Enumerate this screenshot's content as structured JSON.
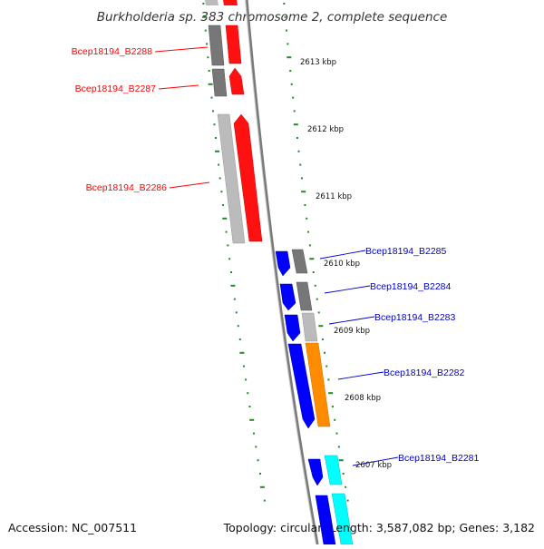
{
  "title": "Burkholderia sp. 383 chromosome 2, complete sequence",
  "footer": {
    "accession": "Accession: NC_007511",
    "summary": "Topology: circular; Length: 3,587,082 bp; Genes: 3,182"
  },
  "colors": {
    "red": "#ff0000",
    "blue": "#0000ff",
    "cyan": "#00ffff",
    "orange": "#ff8c00",
    "dark_gray": "#666666",
    "light_gray": "#bbbbbb",
    "tick_green": "#228b22",
    "backbone": "#808080"
  },
  "kbp_labels": [
    "2613 kbp",
    "2612 kbp",
    "2611 kbp",
    "2610 kbp",
    "2609 kbp",
    "2608 kbp",
    "2607 kbp"
  ],
  "genes": [
    {
      "id": "Bcep18194_B2288",
      "color": "red",
      "side": "left"
    },
    {
      "id": "Bcep18194_B2287",
      "color": "red",
      "side": "left"
    },
    {
      "id": "Bcep18194_B2286",
      "color": "red",
      "side": "left"
    },
    {
      "id": "Bcep18194_B2285",
      "color": "blue",
      "side": "right"
    },
    {
      "id": "Bcep18194_B2284",
      "color": "blue",
      "side": "right"
    },
    {
      "id": "Bcep18194_B2283",
      "color": "blue",
      "side": "right"
    },
    {
      "id": "Bcep18194_B2282",
      "color": "blue",
      "side": "right"
    },
    {
      "id": "Bcep18194_B2281",
      "color": "blue",
      "side": "right"
    }
  ]
}
